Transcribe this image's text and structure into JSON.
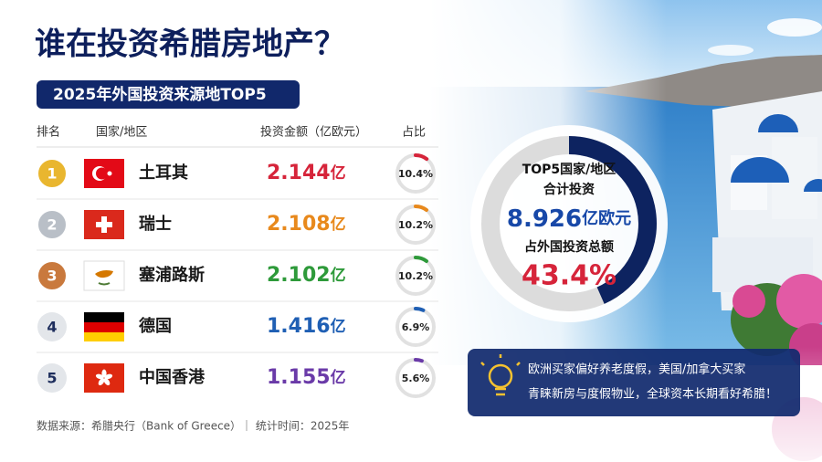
{
  "header": {
    "title": "谁在投资希腊房地产？",
    "subtitle": "2025年外国投资来源地TOP5"
  },
  "table": {
    "columns": [
      "排名",
      "国家/地区",
      "投资金额（亿欧元）",
      "占比"
    ],
    "unit": "亿",
    "rows": [
      {
        "rank": 1,
        "country": "土耳其",
        "amount": 2.144,
        "share": {
          "value": 10.4,
          "label": "10.4%"
        },
        "color": "#d6243a"
      },
      {
        "rank": 2,
        "country": "瑞士",
        "amount": 2.108,
        "share": {
          "value": 10.2,
          "label": "10.2%"
        },
        "color": "#e8891c"
      },
      {
        "rank": 3,
        "country": "塞浦路斯",
        "amount": 2.102,
        "share": {
          "value": 10.2,
          "label": "10.2%"
        },
        "color": "#2e9a3a"
      },
      {
        "rank": 4,
        "country": "德国",
        "amount": 1.416,
        "share": {
          "value": 6.9,
          "label": "6.9%"
        },
        "color": "#1f5fb4"
      },
      {
        "rank": 5,
        "country": "中国香港",
        "amount": 1.155,
        "share": {
          "value": 5.6,
          "label": "5.6%"
        },
        "color": "#6a3aa8"
      }
    ]
  },
  "summary": {
    "line1": "TOP5国家/地区",
    "line2": "合计投资",
    "total": 8.926,
    "total_unit": "亿欧元",
    "line3": "占外国投资总额",
    "share": {
      "value": 43.4,
      "label": "43.4%"
    }
  },
  "tip": {
    "lines": [
      "欧洲买家偏好养老度假，美国/加拿大买家",
      "青睐新房与度假物业，全球资本长期看好希腊！"
    ]
  },
  "footer": {
    "source": "数据来源：希腊央行（Bank of Greece）｜ 统计时间：2025年"
  }
}
